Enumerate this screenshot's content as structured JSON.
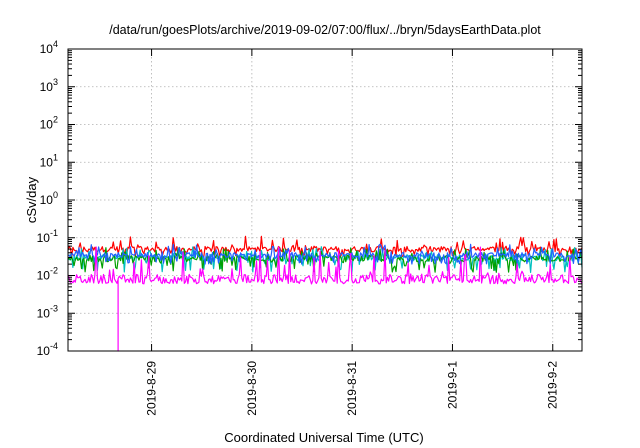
{
  "chart_data": {
    "type": "line",
    "title": "/data/run/goesPlots/archive/2019-09-02/07:00/flux/../bryn/5daysEarthData.plot",
    "xlabel": "Coordinated Universal Time (UTC)",
    "ylabel": "cSv/day",
    "yscale": "log",
    "ylim": [
      0.0001,
      10000
    ],
    "y_ticks": [
      {
        "value": 0.0001,
        "base": "10",
        "exp": "-4"
      },
      {
        "value": 0.001,
        "base": "10",
        "exp": "-3"
      },
      {
        "value": 0.01,
        "base": "10",
        "exp": "-2"
      },
      {
        "value": 0.1,
        "base": "10",
        "exp": "-1"
      },
      {
        "value": 1,
        "base": "10",
        "exp": "0"
      },
      {
        "value": 10,
        "base": "10",
        "exp": "1"
      },
      {
        "value": 100,
        "base": "10",
        "exp": "2"
      },
      {
        "value": 1000,
        "base": "10",
        "exp": "3"
      },
      {
        "value": 10000,
        "base": "10",
        "exp": "4"
      }
    ],
    "xlim": [
      "2019-08-28T04:00",
      "2019-09-02T07:00"
    ],
    "x_ticks": [
      {
        "value": "2019-08-29T00:00",
        "label": "2019-8-29"
      },
      {
        "value": "2019-08-30T00:00",
        "label": "2019-8-30"
      },
      {
        "value": "2019-08-31T00:00",
        "label": "2019-8-31"
      },
      {
        "value": "2019-09-01T00:00",
        "label": "2019-9-1"
      },
      {
        "value": "2019-09-02T00:00",
        "label": "2019-9-2"
      }
    ],
    "grid": true,
    "series": [
      {
        "color": "#ff0000",
        "typical": 0.05,
        "high": 0.11,
        "low": 0.03
      },
      {
        "color": "#00c0c0",
        "typical": 0.03,
        "high": 0.06,
        "low": 0.012
      },
      {
        "color": "#00a000",
        "typical": 0.028,
        "high": 0.055,
        "low": 0.012
      },
      {
        "color": "#2060ff",
        "typical": 0.035,
        "high": 0.07,
        "low": 0.02
      },
      {
        "color": "#ff00ff",
        "typical": 0.008,
        "high": 0.06,
        "low": 0.006,
        "drop": {
          "time": "2019-08-28T16:00",
          "value": 0.0001
        }
      }
    ]
  }
}
